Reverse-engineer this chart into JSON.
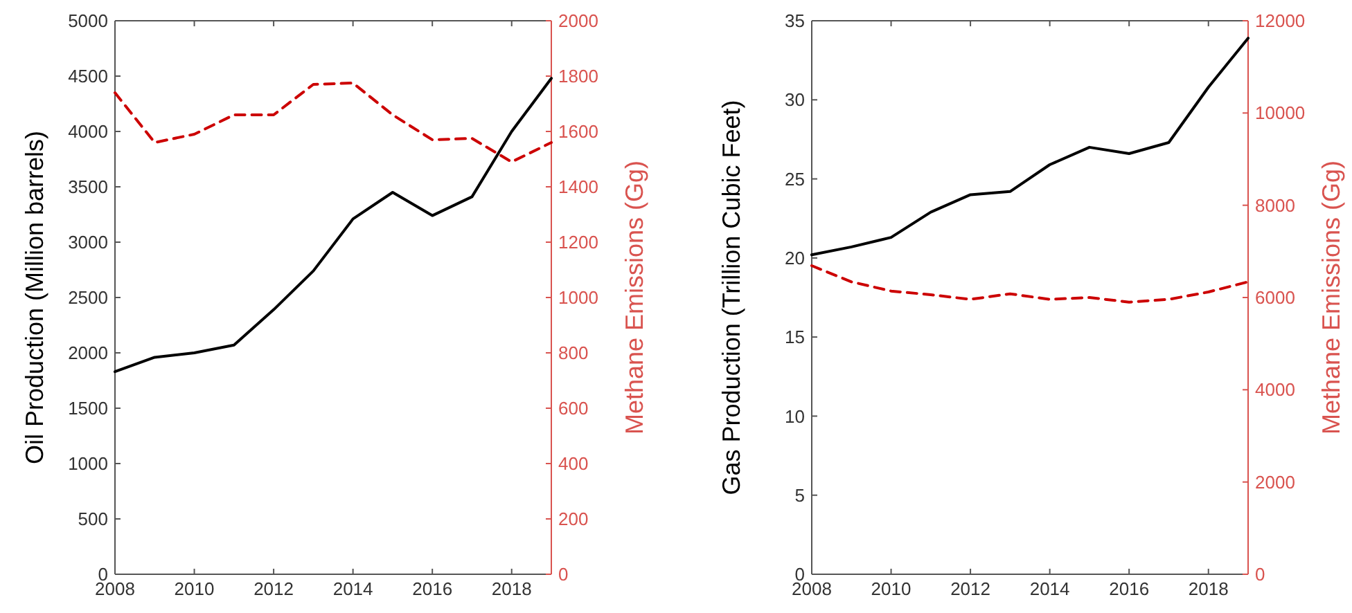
{
  "chart_data": [
    {
      "type": "line",
      "xlabel": null,
      "ylabel": "Oil Production (Million barrels)",
      "y2label": "Methane Emissions (Gg)",
      "x": [
        2008,
        2009,
        2010,
        2011,
        2012,
        2013,
        2014,
        2015,
        2016,
        2017,
        2018,
        2019
      ],
      "series": [
        {
          "color": "#000000",
          "line_style": "solid",
          "values": [
            1830,
            1960,
            2000,
            2070,
            2390,
            2740,
            3210,
            3450,
            3240,
            3410,
            4000,
            4480
          ]
        },
        {
          "color": "#cc0000",
          "line_style": "dashed",
          "axis": "y2",
          "values": [
            1740,
            1560,
            1590,
            1660,
            1660,
            1770,
            1775,
            1660,
            1570,
            1575,
            1490,
            1560
          ]
        }
      ],
      "xlim": [
        2008,
        2019
      ],
      "xticks": [
        2008,
        2010,
        2012,
        2014,
        2016,
        2018
      ],
      "ylim": [
        0,
        5000
      ],
      "yticks": [
        0,
        500,
        1000,
        1500,
        2000,
        2500,
        3000,
        3500,
        4000,
        4500,
        5000
      ],
      "y2lim": [
        0,
        2000
      ],
      "y2ticks": [
        0,
        200,
        400,
        600,
        800,
        1000,
        1200,
        1400,
        1600,
        1800,
        2000
      ],
      "grid": false
    },
    {
      "type": "line",
      "ylabel": "Gas Production (Trillion Cubic Feet)",
      "y2label": "Methane Emissions (Gg)",
      "x": [
        2008,
        2009,
        2010,
        2011,
        2012,
        2013,
        2014,
        2015,
        2016,
        2017,
        2018,
        2019
      ],
      "series": [
        {
          "color": "#000000",
          "line_style": "solid",
          "values": [
            20.2,
            20.7,
            21.3,
            22.9,
            24.0,
            24.2,
            25.9,
            27.0,
            26.6,
            27.3,
            30.8,
            33.9
          ]
        },
        {
          "color": "#cc0000",
          "line_style": "dashed",
          "axis": "y2",
          "values": [
            6690,
            6340,
            6140,
            6060,
            5960,
            6080,
            5960,
            6000,
            5900,
            5960,
            6120,
            6340
          ]
        }
      ],
      "xlim": [
        2008,
        2019
      ],
      "xticks": [
        2008,
        2010,
        2012,
        2014,
        2016,
        2018
      ],
      "ylim": [
        0,
        35
      ],
      "yticks": [
        0,
        5,
        10,
        15,
        20,
        25,
        30,
        35
      ],
      "y2lim": [
        0,
        12000
      ],
      "y2ticks": [
        0,
        2000,
        4000,
        6000,
        8000,
        10000,
        12000
      ],
      "grid": false
    }
  ]
}
